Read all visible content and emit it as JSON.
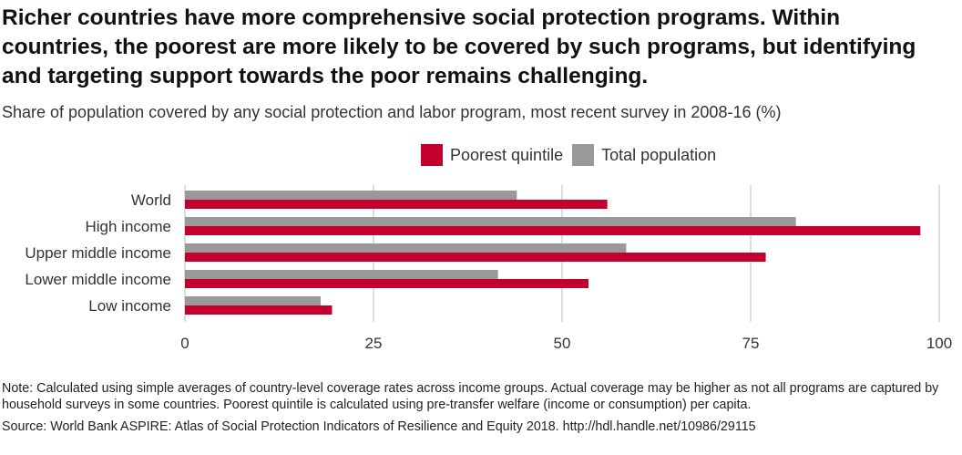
{
  "title": "Richer countries have more comprehensive social protection programs. Within countries, the poorest are more likely to be covered by such programs, but identifying and targeting support towards the poor remains challenging.",
  "subtitle": "Share of population covered by any social protection and labor program, most recent survey in 2008-16 (%)",
  "note": "Note: Calculated using simple averages of country-level coverage rates across income groups. Actual coverage may be higher as not all programs are captured by household surveys in some countries. Poorest quintile is calculated using pre-transfer welfare (income or consumption) per capita.",
  "source": "Source: World Bank ASPIRE: Atlas of Social Protection Indicators of Resilience and Equity  2018. http://hdl.handle.net/10986/29115",
  "colors": {
    "poorest": "#c4002f",
    "total": "#999999",
    "grid": "#dddddd"
  },
  "chart_data": {
    "type": "bar",
    "orientation": "horizontal",
    "categories": [
      "World",
      "High income",
      "Upper middle income",
      "Lower middle income",
      "Low income"
    ],
    "series": [
      {
        "name": "Poorest quintile",
        "values": [
          56,
          97.5,
          77,
          53.5,
          19.5
        ]
      },
      {
        "name": "Total population",
        "values": [
          44,
          81,
          58.5,
          41.5,
          18
        ]
      }
    ],
    "xticks": [
      0,
      25,
      50,
      75,
      100
    ],
    "xlim": [
      0,
      100
    ],
    "grid": true,
    "legend": "top"
  }
}
